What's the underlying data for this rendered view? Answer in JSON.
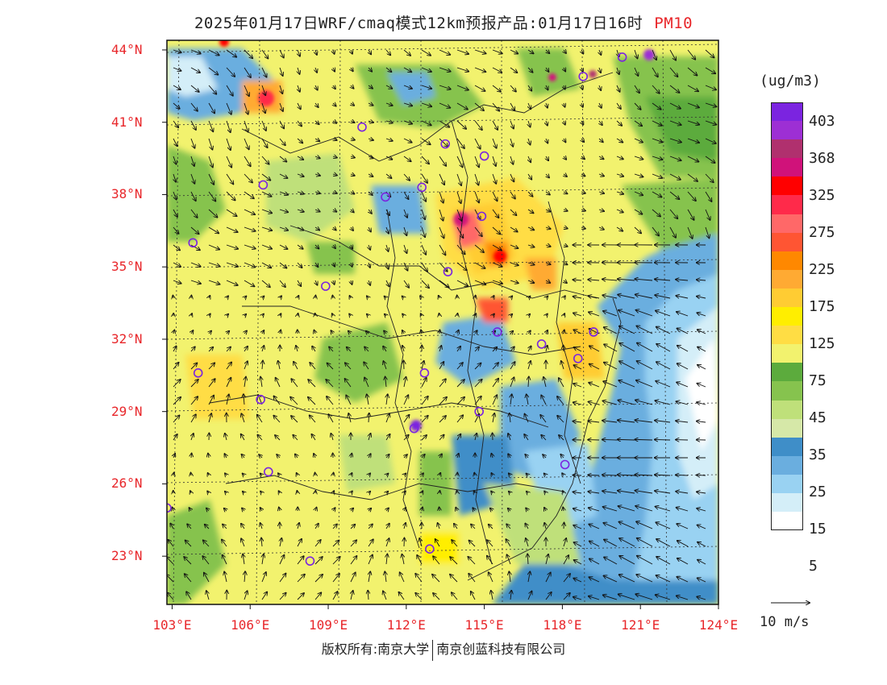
{
  "title": {
    "main": "2025年01月17日WRF/cmaq模式12km预报产品:01月17日16时",
    "pollutant": "PM10"
  },
  "map": {
    "lat_labels": [
      "44°N",
      "41°N",
      "38°N",
      "35°N",
      "32°N",
      "29°N",
      "26°N",
      "23°N"
    ],
    "lat_values": [
      44,
      41,
      38,
      35,
      32,
      29,
      26,
      23
    ],
    "lon_labels": [
      "103°E",
      "106°E",
      "109°E",
      "112°E",
      "115°E",
      "118°E",
      "121°E",
      "124°E"
    ],
    "lon_values": [
      103,
      106,
      109,
      112,
      115,
      118,
      121,
      124
    ],
    "lat_range": [
      21,
      44.4
    ],
    "lon_range": [
      102.8,
      124
    ],
    "city_markers": [
      [
        110.3,
        40.8
      ],
      [
        113.5,
        40.1
      ],
      [
        115.0,
        39.6
      ],
      [
        112.6,
        38.3
      ],
      [
        111.2,
        37.9
      ],
      [
        106.5,
        38.4
      ],
      [
        103.8,
        36.0
      ],
      [
        108.9,
        34.2
      ],
      [
        113.6,
        34.8
      ],
      [
        114.9,
        37.1
      ],
      [
        118.8,
        42.9
      ],
      [
        120.3,
        43.7
      ],
      [
        115.5,
        32.3
      ],
      [
        117.2,
        31.8
      ],
      [
        119.2,
        32.3
      ],
      [
        118.6,
        31.2
      ],
      [
        112.7,
        30.6
      ],
      [
        106.4,
        29.5
      ],
      [
        104.0,
        30.6
      ],
      [
        112.3,
        28.3
      ],
      [
        114.8,
        29.0
      ],
      [
        118.1,
        26.8
      ],
      [
        106.7,
        26.5
      ],
      [
        102.8,
        25.0
      ],
      [
        108.3,
        22.8
      ],
      [
        112.9,
        23.3
      ]
    ]
  },
  "legend": {
    "unit": "(ug/m3)",
    "colors": [
      "#7b24e0",
      "#9d2fd4",
      "#b0306e",
      "#d0127a",
      "#ff0000",
      "#ff2a4a",
      "#ff6868",
      "#ff5533",
      "#ff8800",
      "#ffaa33",
      "#ffcc33",
      "#ffee00",
      "#ffdd44",
      "#f2f26e",
      "#5cab3d",
      "#86c34e",
      "#bfe07a",
      "#d6e8a8",
      "#3f8ec8",
      "#6aaedf",
      "#99d2f2",
      "#d4eef8",
      "#ffffff"
    ],
    "labels": [
      "403",
      "368",
      "325",
      "275",
      "225",
      "175",
      "125",
      "75",
      "45",
      "35",
      "25",
      "15",
      "5"
    ]
  },
  "wind_ref": "10 m/s",
  "copyright": {
    "left": "版权所有:南京大学",
    "right": "南京创蓝科技有限公司"
  }
}
